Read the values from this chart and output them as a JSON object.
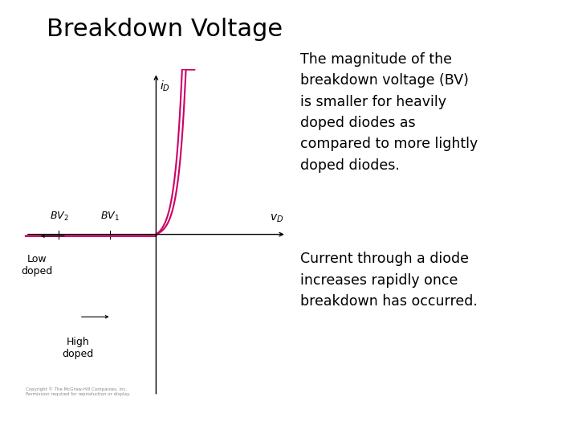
{
  "title": "Breakdown Voltage",
  "title_fontsize": 22,
  "background_color": "#ffffff",
  "curve_color": "#cc0066",
  "axis_color": "#000000",
  "text_color": "#000000",
  "para1": "The magnitude of the\nbreakdown voltage (BV)\nis smaller for heavily\ndoped diodes as\ncompared to more lightly\ndoped diodes.",
  "para2": "Current through a diode\nincreases rapidly once\nbreakdown has occurred.",
  "text_fontsize": 12.5,
  "label_fontsize": 9,
  "axis_label_fontsize": 10,
  "copyright": "Copyright © The McGraw-Hill Companies, Inc.\nPermission required for reproduction or display.",
  "bv1_x": -1.8,
  "bv2_x": -3.8,
  "xlim": [
    -5.2,
    5.2
  ],
  "ylim": [
    -5.0,
    5.0
  ]
}
